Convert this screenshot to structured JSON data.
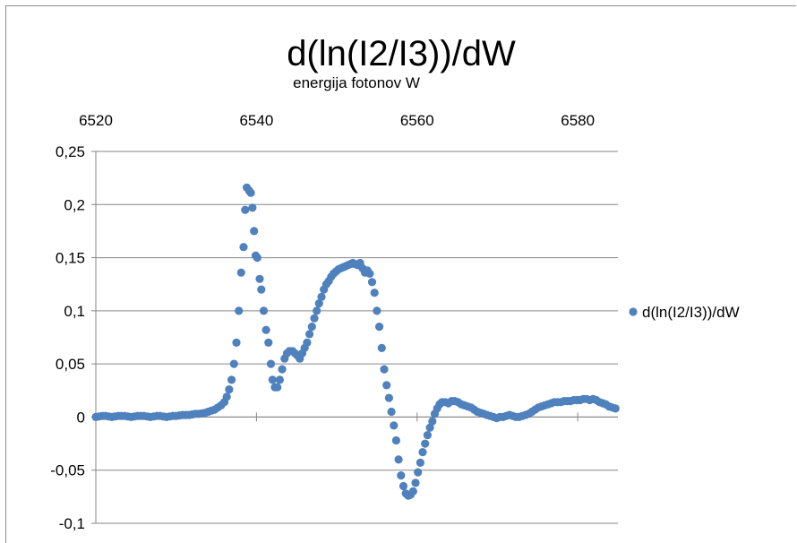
{
  "chart_data": {
    "type": "scatter",
    "title": "d(ln(I2/I3))/dW",
    "xlabel": "energija fotonov W",
    "ylabel": "",
    "xlim": [
      6520,
      6585
    ],
    "ylim": [
      -0.1,
      0.25
    ],
    "x_ticks": [
      6520,
      6540,
      6560,
      6580
    ],
    "x_tick_labels": [
      "6520",
      "6540",
      "6560",
      "6580"
    ],
    "y_ticks": [
      -0.1,
      -0.05,
      0,
      0.05,
      0.1,
      0.15,
      0.2,
      0.25
    ],
    "y_tick_labels": [
      "-0,1",
      "-0,05",
      "0",
      "0,05",
      "0,1",
      "0,15",
      "0,2",
      "0,25"
    ],
    "x_axis_position": "top",
    "grid": "horizontal",
    "legend_position": "right",
    "marker_color": "#4f81bd",
    "series": [
      {
        "name": "d(ln(I2/I3))/dW",
        "points": [
          [
            6520.0,
            0.0
          ],
          [
            6520.4,
            0.0005
          ],
          [
            6520.8,
            0.001
          ],
          [
            6521.2,
            0.001
          ],
          [
            6521.6,
            0.0005
          ],
          [
            6522.0,
            0.0
          ],
          [
            6522.4,
            0.0005
          ],
          [
            6522.8,
            0.001
          ],
          [
            6523.2,
            0.001
          ],
          [
            6523.6,
            0.001
          ],
          [
            6524.0,
            0.0005
          ],
          [
            6524.4,
            0.0
          ],
          [
            6524.8,
            0.0005
          ],
          [
            6525.2,
            0.001
          ],
          [
            6525.6,
            0.001
          ],
          [
            6526.0,
            0.001
          ],
          [
            6526.4,
            0.0005
          ],
          [
            6526.8,
            0.0
          ],
          [
            6527.2,
            0.0005
          ],
          [
            6527.6,
            0.001
          ],
          [
            6528.0,
            0.001
          ],
          [
            6528.4,
            0.0005
          ],
          [
            6528.8,
            0.0
          ],
          [
            6529.2,
            0.0005
          ],
          [
            6529.6,
            0.001
          ],
          [
            6530.0,
            0.001
          ],
          [
            6530.4,
            0.0015
          ],
          [
            6530.8,
            0.002
          ],
          [
            6531.2,
            0.002
          ],
          [
            6531.6,
            0.002
          ],
          [
            6532.0,
            0.0025
          ],
          [
            6532.4,
            0.003
          ],
          [
            6532.8,
            0.003
          ],
          [
            6533.2,
            0.0035
          ],
          [
            6533.6,
            0.004
          ],
          [
            6534.0,
            0.005
          ],
          [
            6534.4,
            0.006
          ],
          [
            6534.8,
            0.007
          ],
          [
            6535.2,
            0.009
          ],
          [
            6535.6,
            0.011
          ],
          [
            6536.0,
            0.014
          ],
          [
            6536.3,
            0.019
          ],
          [
            6536.6,
            0.026
          ],
          [
            6536.9,
            0.035
          ],
          [
            6537.2,
            0.05
          ],
          [
            6537.5,
            0.07
          ],
          [
            6537.8,
            0.1
          ],
          [
            6538.1,
            0.136
          ],
          [
            6538.4,
            0.16
          ],
          [
            6538.6,
            0.195
          ],
          [
            6538.8,
            0.216
          ],
          [
            6539.1,
            0.213
          ],
          [
            6539.3,
            0.211
          ],
          [
            6539.5,
            0.197
          ],
          [
            6539.7,
            0.175
          ],
          [
            6539.9,
            0.152
          ],
          [
            6540.1,
            0.15
          ],
          [
            6540.4,
            0.13
          ],
          [
            6540.6,
            0.12
          ],
          [
            6540.9,
            0.1
          ],
          [
            6541.2,
            0.082
          ],
          [
            6541.5,
            0.07
          ],
          [
            6541.8,
            0.05
          ],
          [
            6542.0,
            0.035
          ],
          [
            6542.3,
            0.028
          ],
          [
            6542.6,
            0.028
          ],
          [
            6542.9,
            0.035
          ],
          [
            6543.2,
            0.045
          ],
          [
            6543.5,
            0.055
          ],
          [
            6543.8,
            0.06
          ],
          [
            6544.1,
            0.062
          ],
          [
            6544.5,
            0.062
          ],
          [
            6544.8,
            0.06
          ],
          [
            6545.1,
            0.058
          ],
          [
            6545.4,
            0.055
          ],
          [
            6545.7,
            0.06
          ],
          [
            6546.0,
            0.065
          ],
          [
            6546.3,
            0.07
          ],
          [
            6546.6,
            0.078
          ],
          [
            6546.9,
            0.085
          ],
          [
            6547.2,
            0.093
          ],
          [
            6547.5,
            0.1
          ],
          [
            6547.8,
            0.107
          ],
          [
            6548.1,
            0.113
          ],
          [
            6548.4,
            0.12
          ],
          [
            6548.7,
            0.125
          ],
          [
            6549.0,
            0.128
          ],
          [
            6549.3,
            0.132
          ],
          [
            6549.6,
            0.135
          ],
          [
            6549.9,
            0.137
          ],
          [
            6550.2,
            0.139
          ],
          [
            6550.5,
            0.14
          ],
          [
            6550.8,
            0.141
          ],
          [
            6551.1,
            0.142
          ],
          [
            6551.4,
            0.143
          ],
          [
            6551.7,
            0.144
          ],
          [
            6552.0,
            0.145
          ],
          [
            6552.3,
            0.144
          ],
          [
            6552.6,
            0.143
          ],
          [
            6552.9,
            0.145
          ],
          [
            6553.2,
            0.14
          ],
          [
            6553.5,
            0.136
          ],
          [
            6553.8,
            0.138
          ],
          [
            6554.1,
            0.135
          ],
          [
            6554.4,
            0.127
          ],
          [
            6554.7,
            0.117
          ],
          [
            6555.0,
            0.1
          ],
          [
            6555.3,
            0.085
          ],
          [
            6555.6,
            0.065
          ],
          [
            6555.9,
            0.045
          ],
          [
            6556.2,
            0.03
          ],
          [
            6556.5,
            0.018
          ],
          [
            6556.8,
            0.005
          ],
          [
            6557.1,
            -0.008
          ],
          [
            6557.4,
            -0.022
          ],
          [
            6557.7,
            -0.04
          ],
          [
            6558.0,
            -0.055
          ],
          [
            6558.3,
            -0.065
          ],
          [
            6558.6,
            -0.072
          ],
          [
            6558.9,
            -0.074
          ],
          [
            6559.2,
            -0.073
          ],
          [
            6559.5,
            -0.07
          ],
          [
            6559.8,
            -0.062
          ],
          [
            6560.1,
            -0.052
          ],
          [
            6560.4,
            -0.043
          ],
          [
            6560.7,
            -0.033
          ],
          [
            6561.0,
            -0.025
          ],
          [
            6561.3,
            -0.017
          ],
          [
            6561.6,
            -0.01
          ],
          [
            6561.9,
            -0.004
          ],
          [
            6562.2,
            0.003
          ],
          [
            6562.5,
            0.008
          ],
          [
            6562.8,
            0.012
          ],
          [
            6563.1,
            0.014
          ],
          [
            6563.5,
            0.014
          ],
          [
            6563.9,
            0.013
          ],
          [
            6564.3,
            0.015
          ],
          [
            6564.7,
            0.015
          ],
          [
            6565.1,
            0.014
          ],
          [
            6565.5,
            0.012
          ],
          [
            6565.9,
            0.011
          ],
          [
            6566.3,
            0.01
          ],
          [
            6566.7,
            0.009
          ],
          [
            6567.1,
            0.007
          ],
          [
            6567.5,
            0.005
          ],
          [
            6567.9,
            0.004
          ],
          [
            6568.3,
            0.003
          ],
          [
            6568.7,
            0.002
          ],
          [
            6569.1,
            0.001
          ],
          [
            6569.5,
            0.0
          ],
          [
            6569.9,
            -0.001
          ],
          [
            6570.3,
            0.0
          ],
          [
            6570.7,
            0.0
          ],
          [
            6571.1,
            0.001
          ],
          [
            6571.5,
            0.002
          ],
          [
            6571.9,
            0.001
          ],
          [
            6572.3,
            0.0
          ],
          [
            6572.7,
            0.0
          ],
          [
            6573.1,
            0.001
          ],
          [
            6573.5,
            0.002
          ],
          [
            6573.9,
            0.003
          ],
          [
            6574.3,
            0.005
          ],
          [
            6574.7,
            0.007
          ],
          [
            6575.1,
            0.009
          ],
          [
            6575.5,
            0.01
          ],
          [
            6575.9,
            0.011
          ],
          [
            6576.3,
            0.012
          ],
          [
            6576.7,
            0.013
          ],
          [
            6577.1,
            0.014
          ],
          [
            6577.5,
            0.014
          ],
          [
            6577.9,
            0.014
          ],
          [
            6578.3,
            0.015
          ],
          [
            6578.7,
            0.015
          ],
          [
            6579.1,
            0.015
          ],
          [
            6579.5,
            0.016
          ],
          [
            6579.9,
            0.016
          ],
          [
            6580.3,
            0.016
          ],
          [
            6580.7,
            0.017
          ],
          [
            6581.1,
            0.017
          ],
          [
            6581.5,
            0.016
          ],
          [
            6581.9,
            0.017
          ],
          [
            6582.3,
            0.016
          ],
          [
            6582.7,
            0.014
          ],
          [
            6583.1,
            0.013
          ],
          [
            6583.5,
            0.012
          ],
          [
            6583.9,
            0.01
          ],
          [
            6584.3,
            0.009
          ],
          [
            6584.7,
            0.008
          ]
        ]
      }
    ]
  }
}
